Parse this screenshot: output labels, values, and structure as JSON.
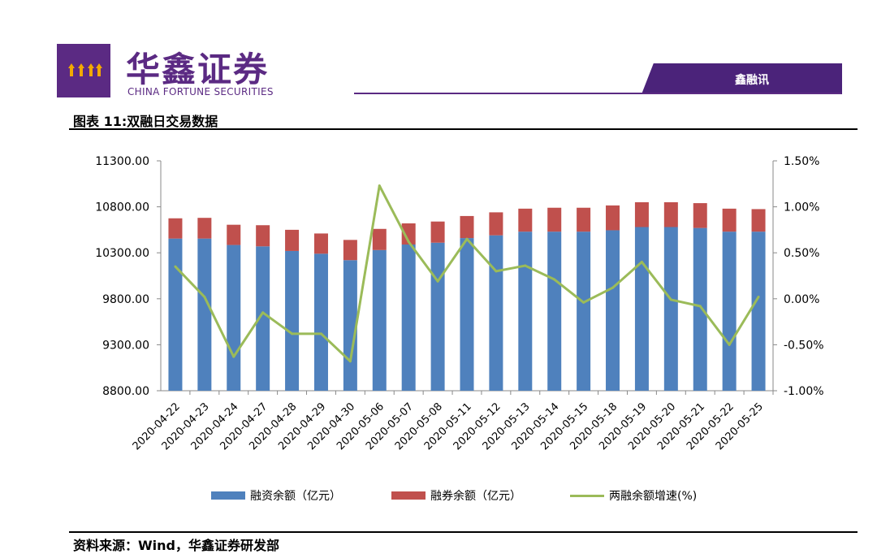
{
  "header": {
    "company_cn": "华鑫证券",
    "company_en": "CHINA FORTUNE SECURITIES",
    "tab_label": "鑫融讯"
  },
  "figure": {
    "title": "图表 11:双融日交易数据",
    "source": "资料来源：Wind，华鑫证券研发部"
  },
  "colors": {
    "brand": "#5b2a83",
    "bar1": "#4f81bd",
    "bar2": "#c0504d",
    "line": "#9bbb59"
  },
  "chart_data": {
    "type": "bar",
    "categories": [
      "2020-04-22",
      "2020-04-23",
      "2020-04-24",
      "2020-04-27",
      "2020-04-28",
      "2020-04-29",
      "2020-04-30",
      "2020-05-06",
      "2020-05-07",
      "2020-05-08",
      "2020-05-11",
      "2020-05-12",
      "2020-05-13",
      "2020-05-14",
      "2020-05-15",
      "2020-05-18",
      "2020-05-19",
      "2020-05-20",
      "2020-05-21",
      "2020-05-22",
      "2020-05-25"
    ],
    "series": [
      {
        "name": "融资余额（亿元）",
        "type": "bar",
        "stack": true,
        "axis": "left",
        "values": [
          10455,
          10455,
          10385,
          10370,
          10320,
          10290,
          10220,
          10330,
          10390,
          10410,
          10460,
          10490,
          10530,
          10530,
          10530,
          10545,
          10580,
          10580,
          10570,
          10530,
          10530
        ]
      },
      {
        "name": "融券余额（亿元）",
        "type": "bar",
        "stack": true,
        "axis": "left",
        "values": [
          220,
          225,
          220,
          230,
          230,
          220,
          220,
          230,
          230,
          230,
          240,
          250,
          250,
          260,
          260,
          270,
          270,
          270,
          270,
          250,
          245
        ]
      },
      {
        "name": "两融余额增速(%)",
        "type": "line",
        "axis": "right",
        "values": [
          0.35,
          0.02,
          -0.63,
          -0.15,
          -0.38,
          -0.38,
          -0.68,
          1.23,
          0.62,
          0.19,
          0.65,
          0.3,
          0.36,
          0.21,
          -0.04,
          0.12,
          0.4,
          -0.01,
          -0.08,
          -0.5,
          0.02
        ]
      }
    ],
    "y_left": {
      "min": 8800,
      "max": 11300,
      "ticks": [
        "8800.00",
        "9300.00",
        "9800.00",
        "10300.00",
        "10800.00",
        "11300.00"
      ]
    },
    "y_right": {
      "min": -1.0,
      "max": 1.5,
      "ticks": [
        "-1.00%",
        "-0.50%",
        "0.00%",
        "0.50%",
        "1.00%",
        "1.50%"
      ]
    },
    "legend": {
      "placement": "bottom"
    },
    "grid": false
  }
}
